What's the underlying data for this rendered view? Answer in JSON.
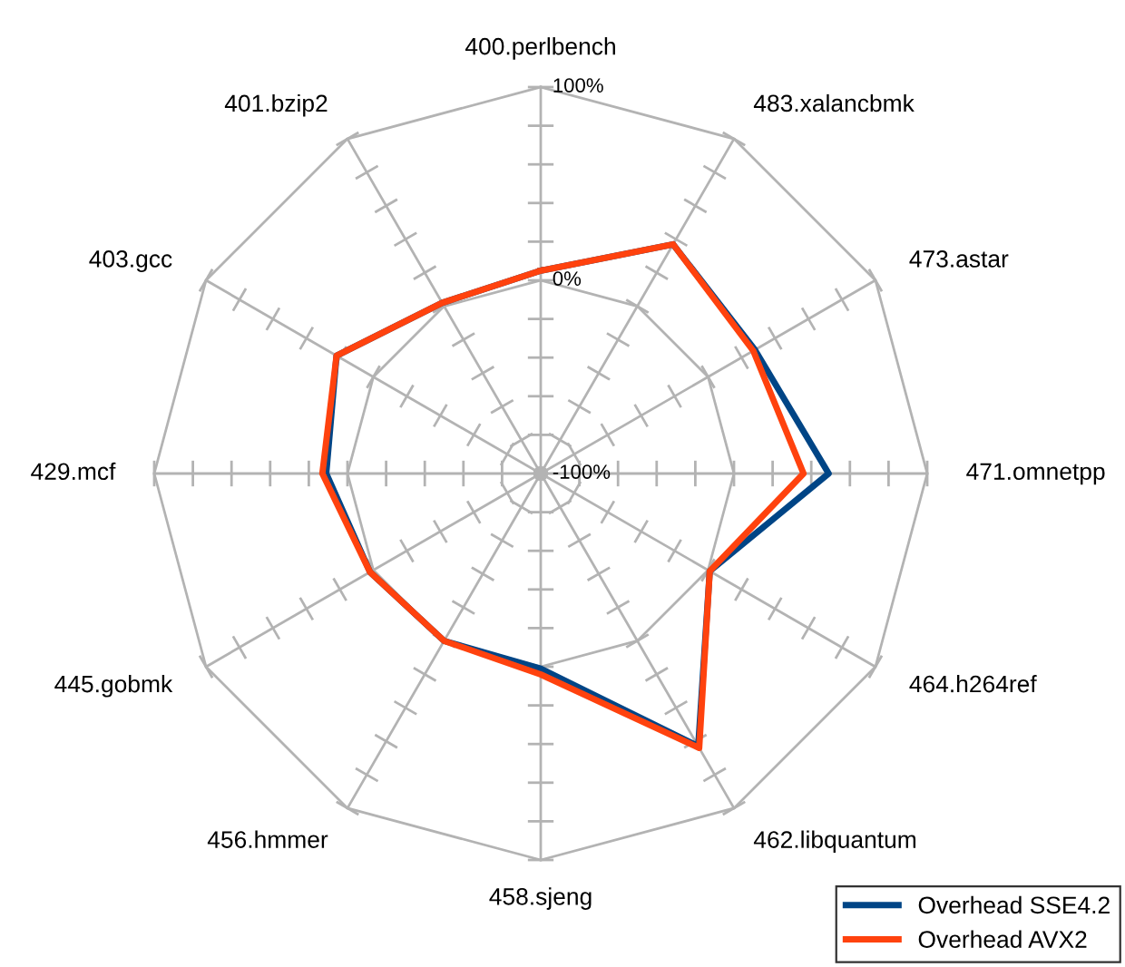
{
  "chart_data": {
    "type": "radar",
    "categories": [
      "400.perlbench",
      "483.xalancbmk",
      "473.astar",
      "471.omnetpp",
      "464.h264ref",
      "462.libquantum",
      "458.sjeng",
      "456.hmmer",
      "445.gobmk",
      "429.mcf",
      "403.gcc",
      "401.bzip2"
    ],
    "series": [
      {
        "name": "Overhead SSE4.2",
        "color": "#004586",
        "values": [
          5,
          37,
          28,
          49,
          1,
          63,
          1,
          0,
          2,
          11,
          22,
          2
        ]
      },
      {
        "name": "Overhead AVX2",
        "color": "#ff420e",
        "values": [
          5,
          37,
          27,
          36,
          1,
          64,
          4,
          0,
          2,
          13,
          22,
          2
        ]
      }
    ],
    "ylim": [
      -100,
      100
    ],
    "yticks": [
      {
        "value": -100,
        "label": "-100%"
      },
      {
        "value": 0,
        "label": "0%"
      },
      {
        "value": 100,
        "label": "100%"
      }
    ],
    "legend": "bottom right"
  }
}
